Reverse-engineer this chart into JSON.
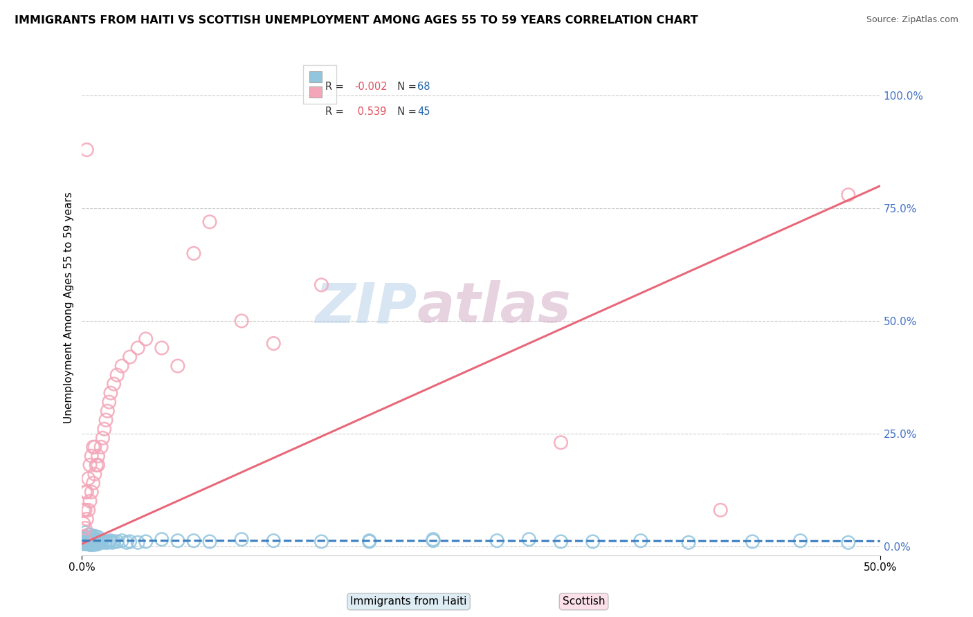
{
  "title": "IMMIGRANTS FROM HAITI VS SCOTTISH UNEMPLOYMENT AMONG AGES 55 TO 59 YEARS CORRELATION CHART",
  "source": "Source: ZipAtlas.com",
  "ylabel": "Unemployment Among Ages 55 to 59 years",
  "x_tick_labels": [
    "0.0%",
    "",
    "",
    "",
    "",
    "50.0%"
  ],
  "x_tick_vals": [
    0.0,
    0.1,
    0.2,
    0.3,
    0.4,
    0.5
  ],
  "y_tick_labels": [
    "100.0%",
    "75.0%",
    "50.0%",
    "25.0%",
    "0.0%"
  ],
  "y_tick_vals": [
    1.0,
    0.75,
    0.5,
    0.25,
    0.0
  ],
  "xlim": [
    0.0,
    0.5
  ],
  "ylim": [
    -0.02,
    1.08
  ],
  "color_blue": "#92c5de",
  "color_pink": "#f4a6b8",
  "line_color_blue": "#3a7dbf",
  "line_color_pink": "#e8687a",
  "watermark_color_zip": "#b8d0e8",
  "watermark_color_atlas": "#d4b0c8",
  "haiti_x": [
    0.001,
    0.001,
    0.001,
    0.002,
    0.002,
    0.002,
    0.002,
    0.002,
    0.003,
    0.003,
    0.003,
    0.004,
    0.004,
    0.004,
    0.005,
    0.005,
    0.005,
    0.005,
    0.006,
    0.006,
    0.006,
    0.007,
    0.007,
    0.007,
    0.008,
    0.008,
    0.008,
    0.009,
    0.009,
    0.01,
    0.01,
    0.01,
    0.011,
    0.012,
    0.013,
    0.014,
    0.015,
    0.016,
    0.017,
    0.018,
    0.019,
    0.02,
    0.022,
    0.025,
    0.028,
    0.03,
    0.035,
    0.04,
    0.05,
    0.06,
    0.07,
    0.08,
    0.1,
    0.12,
    0.15,
    0.18,
    0.22,
    0.26,
    0.3,
    0.35,
    0.38,
    0.42,
    0.45,
    0.48,
    0.28,
    0.32,
    0.18,
    0.22
  ],
  "haiti_y": [
    0.005,
    0.01,
    0.02,
    0.005,
    0.01,
    0.015,
    0.02,
    0.03,
    0.005,
    0.01,
    0.02,
    0.005,
    0.015,
    0.025,
    0.003,
    0.008,
    0.015,
    0.025,
    0.005,
    0.01,
    0.02,
    0.003,
    0.01,
    0.02,
    0.005,
    0.012,
    0.022,
    0.004,
    0.015,
    0.005,
    0.012,
    0.02,
    0.008,
    0.01,
    0.012,
    0.008,
    0.01,
    0.008,
    0.01,
    0.012,
    0.008,
    0.01,
    0.01,
    0.012,
    0.008,
    0.01,
    0.008,
    0.01,
    0.015,
    0.012,
    0.012,
    0.01,
    0.015,
    0.012,
    0.01,
    0.012,
    0.015,
    0.012,
    0.01,
    0.012,
    0.008,
    0.01,
    0.012,
    0.008,
    0.015,
    0.01,
    0.01,
    0.012
  ],
  "scottish_x": [
    0.001,
    0.001,
    0.001,
    0.002,
    0.002,
    0.002,
    0.003,
    0.003,
    0.004,
    0.004,
    0.005,
    0.005,
    0.006,
    0.006,
    0.007,
    0.007,
    0.008,
    0.008,
    0.009,
    0.01,
    0.01,
    0.012,
    0.013,
    0.014,
    0.015,
    0.016,
    0.017,
    0.018,
    0.02,
    0.022,
    0.025,
    0.03,
    0.035,
    0.04,
    0.05,
    0.06,
    0.07,
    0.08,
    0.1,
    0.12,
    0.15,
    0.3,
    0.4,
    0.48,
    0.003
  ],
  "scottish_y": [
    0.02,
    0.05,
    0.08,
    0.04,
    0.08,
    0.12,
    0.06,
    0.12,
    0.08,
    0.15,
    0.1,
    0.18,
    0.12,
    0.2,
    0.14,
    0.22,
    0.16,
    0.22,
    0.18,
    0.18,
    0.2,
    0.22,
    0.24,
    0.26,
    0.28,
    0.3,
    0.32,
    0.34,
    0.36,
    0.38,
    0.4,
    0.42,
    0.44,
    0.46,
    0.44,
    0.4,
    0.65,
    0.72,
    0.5,
    0.45,
    0.58,
    0.23,
    0.08,
    0.78,
    0.88
  ],
  "pink_line_x0": 0.0,
  "pink_line_y0": 0.005,
  "pink_line_x1": 0.5,
  "pink_line_y1": 0.8,
  "blue_line_x0": 0.0,
  "blue_line_y0": 0.012,
  "blue_line_x1": 0.5,
  "blue_line_y1": 0.011
}
